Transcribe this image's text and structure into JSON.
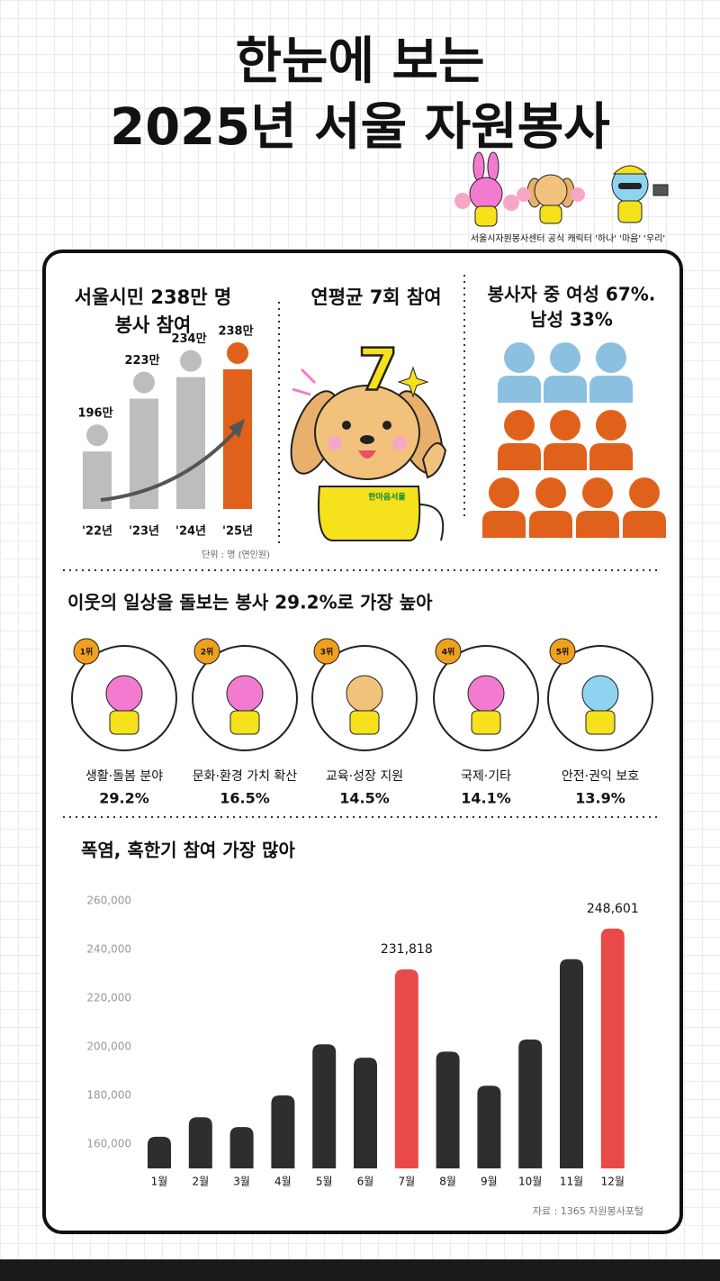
{
  "title": [
    "한눈에 보는",
    "2025년 서울 자원봉사"
  ],
  "character_caption": "서울시자원봉사센터 공식 캐릭터 '하나' '마음' '우리'",
  "chart_data": [
    {
      "type": "bar",
      "title": [
        "서울시민 238만 명",
        "봉사 참여"
      ],
      "categories": [
        "'22년",
        "'23년",
        "'24년",
        "'25년"
      ],
      "values": [
        196,
        223,
        234,
        238
      ],
      "value_labels": [
        "196만",
        "223만",
        "234만",
        "238만"
      ],
      "colors": [
        "#bdbdbd",
        "#bdbdbd",
        "#bdbdbd",
        "#e0611b"
      ],
      "note": "단위 : 명 (연인원)"
    },
    {
      "type": "bar",
      "title": "폭염, 혹한기 참여 가장 많아",
      "categories": [
        "1월",
        "2월",
        "3월",
        "4월",
        "5월",
        "6월",
        "7월",
        "8월",
        "9월",
        "10월",
        "11월",
        "12월"
      ],
      "values": [
        163000,
        171000,
        167000,
        180000,
        201000,
        195500,
        231818,
        198000,
        184000,
        203000,
        236000,
        248601
      ],
      "value_labels": [
        null,
        null,
        null,
        null,
        null,
        null,
        "231,818",
        null,
        null,
        null,
        null,
        "248,601"
      ],
      "colors": [
        "#2e2e2e",
        "#2e2e2e",
        "#2e2e2e",
        "#2e2e2e",
        "#2e2e2e",
        "#2e2e2e",
        "#e84a4a",
        "#2e2e2e",
        "#2e2e2e",
        "#2e2e2e",
        "#2e2e2e",
        "#e84a4a"
      ],
      "ylim": [
        150000,
        260000
      ],
      "yticks": [
        {
          "value": 160000,
          "label": "160,000"
        },
        {
          "value": 180000,
          "label": "180,000"
        },
        {
          "value": 200000,
          "label": "200,000"
        },
        {
          "value": 220000,
          "label": "220,000"
        },
        {
          "value": 240000,
          "label": "240,000"
        },
        {
          "value": 260000,
          "label": "260,000"
        }
      ],
      "grid": false,
      "note": "자료 : 1365 자원봉사포털"
    }
  ],
  "average": {
    "title": "연평균 7회 참여",
    "badge": "7",
    "logo": "한마음서울"
  },
  "gender": {
    "title": [
      "봉사자 중 여성 67%.",
      "남성 33%"
    ]
  },
  "ranking": {
    "title": "이웃의 일상을 돌보는 봉사 29.2%로 가장 높아",
    "items": [
      {
        "rank": "1위",
        "label": "생활·돌봄 분야",
        "value": "29.2%"
      },
      {
        "rank": "2위",
        "label": "문화·환경 가치 확산",
        "value": "16.5%"
      },
      {
        "rank": "3위",
        "label": "교육·성장 지원",
        "value": "14.5%"
      },
      {
        "rank": "4위",
        "label": "국제·기타",
        "value": "14.1%"
      },
      {
        "rank": "5위",
        "label": "안전·권익 보호",
        "value": "13.9%"
      }
    ]
  }
}
